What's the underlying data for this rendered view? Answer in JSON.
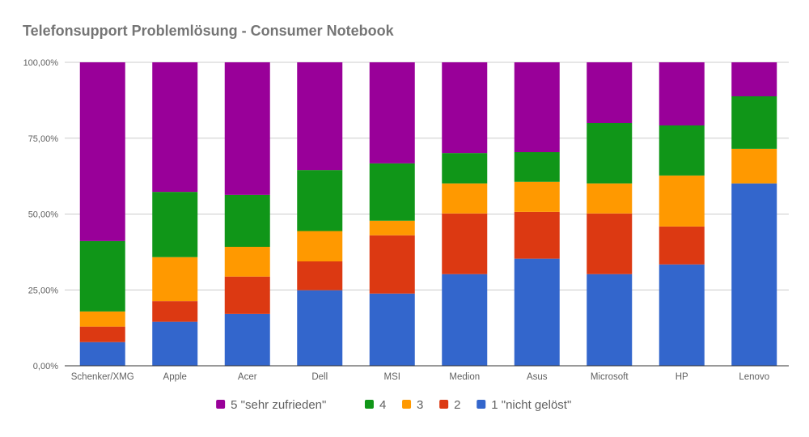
{
  "chart_data": {
    "type": "bar",
    "stacked": true,
    "normalized": true,
    "title": "Telefonsupport Problemlösung - Consumer Notebook",
    "xlabel": "",
    "ylabel": "",
    "ylim": [
      0,
      100
    ],
    "y_ticks": [
      "0,00%",
      "25,00%",
      "50,00%",
      "75,00%",
      "100,00%"
    ],
    "y_tick_values": [
      0,
      25,
      50,
      75,
      100
    ],
    "grid": true,
    "legend_position": "bottom",
    "categories": [
      "Schenker/XMG",
      "Apple",
      "Acer",
      "Dell",
      "MSI",
      "Medion",
      "Asus",
      "Microsoft",
      "HP",
      "Lenovo"
    ],
    "series": [
      {
        "name": "1 \"nicht gelöst\"",
        "color": "#3366cc",
        "values": [
          7.8,
          14.5,
          17.1,
          24.9,
          23.8,
          30.2,
          35.3,
          30.2,
          33.4,
          60.1
        ]
      },
      {
        "name": "2",
        "color": "#dc3912",
        "values": [
          5.1,
          6.8,
          12.3,
          9.5,
          19.2,
          20.0,
          15.4,
          20.0,
          12.5,
          0
        ]
      },
      {
        "name": "3",
        "color": "#ff9900",
        "values": [
          5.0,
          14.5,
          9.8,
          10.0,
          4.8,
          9.9,
          9.9,
          9.9,
          16.8,
          11.4
        ]
      },
      {
        "name": "4",
        "color": "#109618",
        "values": [
          23.2,
          21.5,
          17.1,
          20.1,
          18.9,
          10.0,
          9.8,
          19.9,
          16.5,
          17.3
        ]
      },
      {
        "name": "5 \"sehr zufrieden\"",
        "color": "#990099",
        "values": [
          58.9,
          42.7,
          43.7,
          35.5,
          33.3,
          29.9,
          29.6,
          20.0,
          20.8,
          11.2
        ]
      }
    ],
    "legend_order": [
      "5 \"sehr zufrieden\"",
      "4",
      "3",
      "2",
      "1 \"nicht gelöst\""
    ]
  }
}
